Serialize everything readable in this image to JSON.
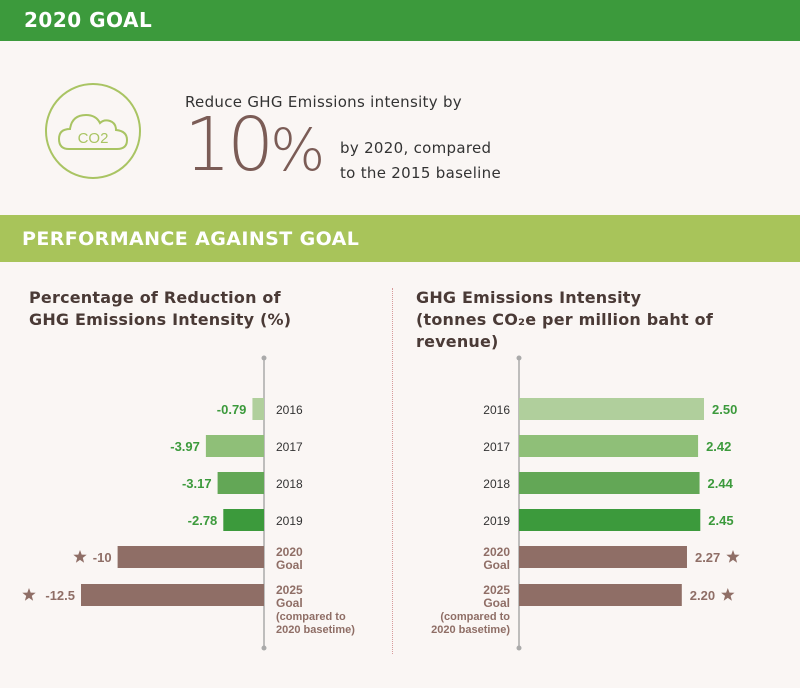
{
  "header": {
    "title": "2020 GOAL"
  },
  "goal": {
    "icon": "co2-cloud-icon",
    "icon_text": "CO2",
    "intro": "Reduce GHG Emissions intensity by",
    "big_value": "10",
    "big_unit": "%",
    "line1": "by 2020, compared",
    "line2": "to the 2015 baseline"
  },
  "section": {
    "title": "PERFORMANCE AGAINST GOAL"
  },
  "colors": {
    "green_dark": "#3c9a3c",
    "green_light": "#a8c45a",
    "brown": "#8f6e66"
  },
  "chart_data": [
    {
      "type": "bar",
      "title_line1": "Percentage of Reduction of",
      "title_line2": "GHG Emissions Intensity (%)",
      "categories": [
        [
          "2016"
        ],
        [
          "2017"
        ],
        [
          "2018"
        ],
        [
          "2019"
        ],
        [
          "2020",
          "Goal"
        ],
        [
          "2025",
          "Goal",
          "(compared to",
          "2020 basetime)"
        ]
      ],
      "values": [
        -0.79,
        -3.97,
        -3.17,
        -2.78,
        -10,
        -12.5
      ],
      "labels": [
        "-0.79",
        "-3.97",
        "-3.17",
        "-2.78",
        "-10",
        "-12.5"
      ],
      "colors": [
        "#b0cf9c",
        "#8fbf78",
        "#63a756",
        "#3c9a3c",
        "#8f6e66",
        "#8f6e66"
      ],
      "star": [
        false,
        false,
        false,
        false,
        true,
        true
      ]
    },
    {
      "type": "bar",
      "title_line1": "GHG Emissions Intensity",
      "title_line2": "(tonnes CO₂e per million baht of revenue)",
      "categories": [
        [
          "2016"
        ],
        [
          "2017"
        ],
        [
          "2018"
        ],
        [
          "2019"
        ],
        [
          "2020",
          "Goal"
        ],
        [
          "2025",
          "Goal",
          "(compared to",
          "2020 basetime)"
        ]
      ],
      "values": [
        2.5,
        2.42,
        2.44,
        2.45,
        2.27,
        2.2
      ],
      "labels": [
        "2.50",
        "2.42",
        "2.44",
        "2.45",
        "2.27",
        "2.20"
      ],
      "colors": [
        "#b0cf9c",
        "#8fbf78",
        "#63a756",
        "#3c9a3c",
        "#8f6e66",
        "#8f6e66"
      ],
      "star": [
        false,
        false,
        false,
        false,
        true,
        true
      ]
    }
  ]
}
